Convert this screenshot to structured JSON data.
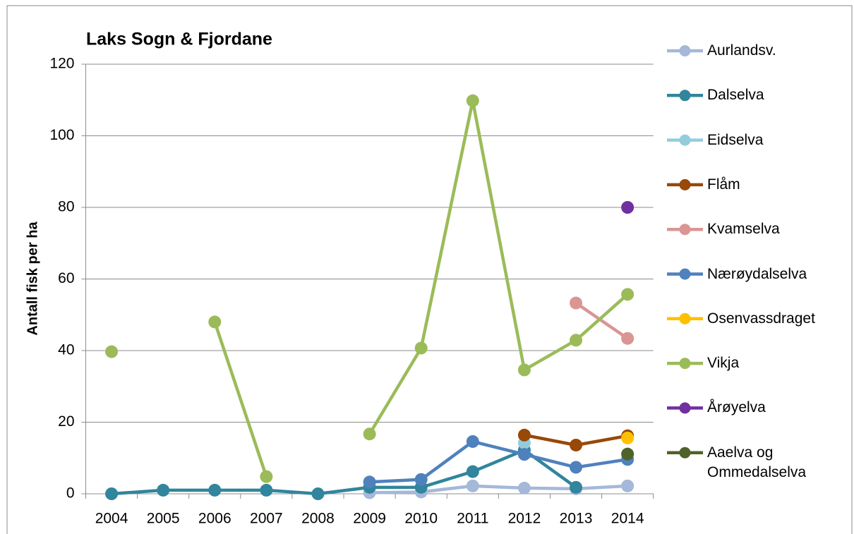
{
  "chart_data": {
    "type": "line",
    "title": "Laks Sogn & Fjordane",
    "y_label": "Antall fisk per ha",
    "categories": [
      "2004",
      "2005",
      "2006",
      "2007",
      "2008",
      "2009",
      "2010",
      "2011",
      "2012",
      "2013",
      "2014"
    ],
    "ylim": [
      0,
      120
    ],
    "yticks": [
      0,
      20,
      40,
      60,
      80,
      100,
      120
    ],
    "grid": true,
    "legend": "right",
    "series": [
      {
        "name": "Aurlandsv.",
        "color": "#a5b8d9",
        "values": [
          null,
          null,
          null,
          null,
          null,
          0.3,
          0.5,
          2.2,
          1.6,
          1.4,
          2.2
        ]
      },
      {
        "name": "Dalselva",
        "color": "#31859c",
        "values": [
          0,
          1,
          1,
          1,
          0,
          1.8,
          1.8,
          6.2,
          12.2,
          1.8,
          null
        ]
      },
      {
        "name": "Eidselva",
        "color": "#93cddd",
        "values": [
          null,
          null,
          null,
          null,
          null,
          null,
          null,
          null,
          14.2,
          null,
          null
        ]
      },
      {
        "name": "Flåm",
        "color": "#984807",
        "values": [
          null,
          null,
          null,
          null,
          null,
          null,
          null,
          null,
          16.4,
          13.6,
          16.2
        ]
      },
      {
        "name": "Kvamselva",
        "color": "#d99694",
        "values": [
          null,
          null,
          null,
          null,
          null,
          null,
          null,
          null,
          null,
          53.3,
          43.4
        ]
      },
      {
        "name": "Nærøydalselva",
        "color": "#4f81bd",
        "values": [
          null,
          null,
          null,
          null,
          null,
          3.3,
          4.0,
          14.6,
          11.0,
          7.4,
          9.6
        ]
      },
      {
        "name": "Osenvassdraget",
        "color": "#ffc000",
        "values": [
          null,
          null,
          null,
          null,
          null,
          null,
          null,
          null,
          null,
          null,
          15.6
        ]
      },
      {
        "name": "Vikja",
        "color": "#9bbb59",
        "values": [
          39.7,
          null,
          48.0,
          4.8,
          null,
          16.7,
          40.7,
          109.8,
          34.6,
          42.9,
          55.7
        ]
      },
      {
        "name": "Årøyelva",
        "color": "#7030a0",
        "values": [
          null,
          null,
          null,
          null,
          null,
          null,
          null,
          null,
          null,
          null,
          80
        ]
      },
      {
        "name": "Aaelva og Ommedalselva",
        "color": "#4f6228",
        "values": [
          null,
          null,
          null,
          null,
          null,
          null,
          null,
          null,
          null,
          null,
          11.1
        ]
      }
    ]
  }
}
